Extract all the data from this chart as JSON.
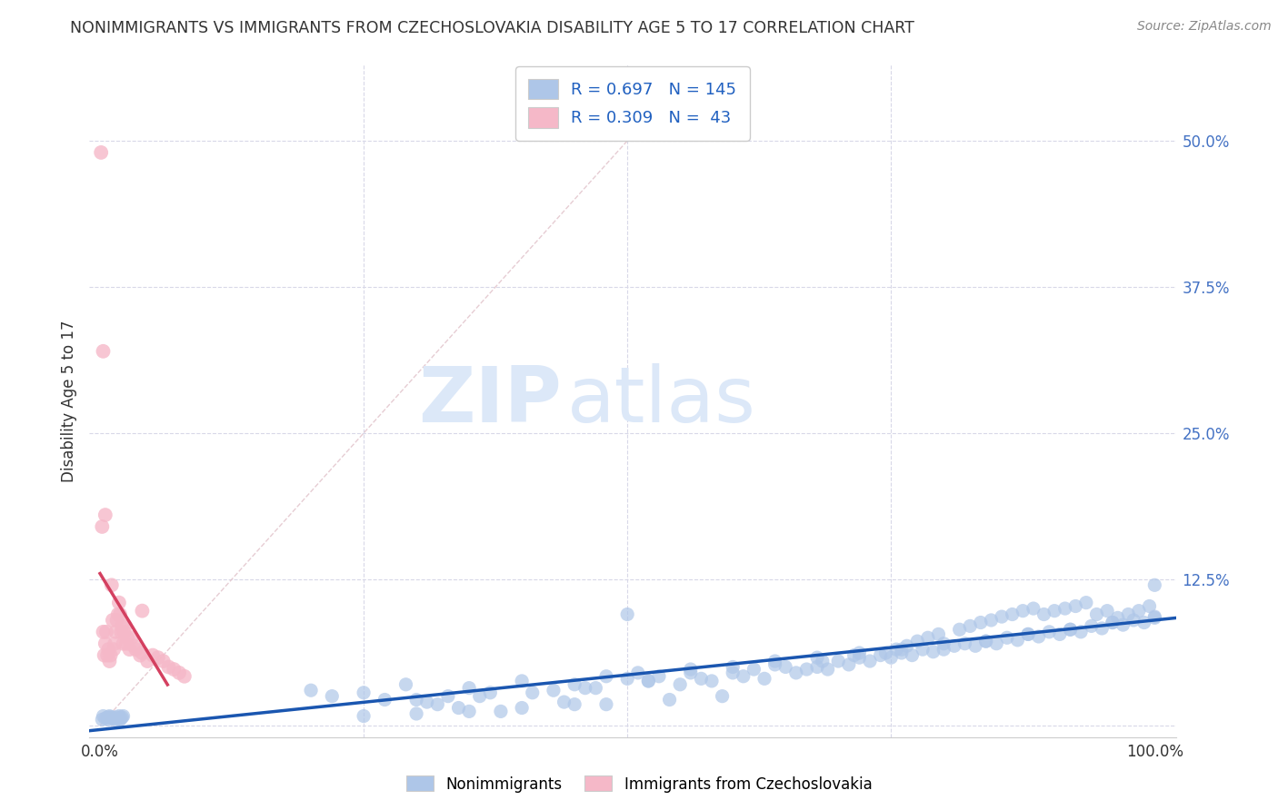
{
  "title": "NONIMMIGRANTS VS IMMIGRANTS FROM CZECHOSLOVAKIA DISABILITY AGE 5 TO 17 CORRELATION CHART",
  "source": "Source: ZipAtlas.com",
  "ylabel": "Disability Age 5 to 17",
  "xlim": [
    -0.01,
    1.02
  ],
  "ylim": [
    -0.01,
    0.565
  ],
  "xticks": [
    0.0,
    0.25,
    0.5,
    0.75,
    1.0
  ],
  "xticklabels": [
    "0.0%",
    "",
    "",
    "",
    "100.0%"
  ],
  "yticks": [
    0.0,
    0.125,
    0.25,
    0.375,
    0.5
  ],
  "yticklabels": [
    "",
    "12.5%",
    "25.0%",
    "37.5%",
    "50.0%"
  ],
  "blue_R": 0.697,
  "blue_N": 145,
  "pink_R": 0.309,
  "pink_N": 43,
  "blue_color": "#aec6e8",
  "pink_color": "#f5b8c8",
  "blue_line_color": "#1a56b0",
  "pink_line_color": "#d44060",
  "diag_color": "#e0c0c8",
  "background_color": "#ffffff",
  "grid_color": "#d8d8e8",
  "watermark_zip": "ZIP",
  "watermark_atlas": "atlas",
  "watermark_color": "#dce8f8",
  "legend_color": "#2060c0",
  "blue_scatter_x": [
    0.002,
    0.003,
    0.005,
    0.007,
    0.008,
    0.009,
    0.01,
    0.011,
    0.012,
    0.013,
    0.015,
    0.016,
    0.017,
    0.018,
    0.019,
    0.02,
    0.021,
    0.022,
    0.2,
    0.22,
    0.25,
    0.27,
    0.29,
    0.31,
    0.33,
    0.35,
    0.37,
    0.4,
    0.43,
    0.45,
    0.47,
    0.5,
    0.52,
    0.53,
    0.55,
    0.57,
    0.58,
    0.6,
    0.61,
    0.62,
    0.63,
    0.65,
    0.66,
    0.67,
    0.68,
    0.69,
    0.7,
    0.71,
    0.72,
    0.73,
    0.74,
    0.75,
    0.76,
    0.77,
    0.78,
    0.79,
    0.8,
    0.81,
    0.82,
    0.83,
    0.84,
    0.85,
    0.86,
    0.87,
    0.88,
    0.89,
    0.9,
    0.91,
    0.92,
    0.93,
    0.94,
    0.95,
    0.96,
    0.97,
    0.98,
    0.99,
    1.0,
    1.0,
    0.3,
    0.32,
    0.34,
    0.36,
    0.38,
    0.41,
    0.44,
    0.46,
    0.48,
    0.51,
    0.54,
    0.56,
    0.59,
    0.64,
    0.685,
    0.715,
    0.745,
    0.755,
    0.765,
    0.775,
    0.785,
    0.795,
    0.815,
    0.825,
    0.835,
    0.845,
    0.855,
    0.865,
    0.875,
    0.885,
    0.895,
    0.905,
    0.915,
    0.925,
    0.935,
    0.945,
    0.955,
    0.965,
    0.975,
    0.985,
    0.995,
    0.48,
    0.52,
    0.56,
    0.6,
    0.64,
    0.68,
    0.72,
    0.76,
    0.8,
    0.84,
    0.88,
    0.92,
    0.96,
    1.0,
    0.25,
    0.3,
    0.35,
    0.4,
    0.45,
    0.5
  ],
  "blue_scatter_y": [
    0.005,
    0.008,
    0.006,
    0.007,
    0.005,
    0.008,
    0.007,
    0.006,
    0.007,
    0.006,
    0.005,
    0.007,
    0.006,
    0.008,
    0.005,
    0.006,
    0.007,
    0.008,
    0.03,
    0.025,
    0.028,
    0.022,
    0.035,
    0.02,
    0.025,
    0.032,
    0.028,
    0.038,
    0.03,
    0.035,
    0.032,
    0.04,
    0.038,
    0.042,
    0.035,
    0.04,
    0.038,
    0.045,
    0.042,
    0.048,
    0.04,
    0.05,
    0.045,
    0.048,
    0.05,
    0.048,
    0.055,
    0.052,
    0.058,
    0.055,
    0.06,
    0.058,
    0.062,
    0.06,
    0.065,
    0.063,
    0.065,
    0.068,
    0.07,
    0.068,
    0.072,
    0.07,
    0.075,
    0.073,
    0.078,
    0.076,
    0.08,
    0.078,
    0.082,
    0.08,
    0.085,
    0.083,
    0.088,
    0.086,
    0.09,
    0.088,
    0.092,
    0.12,
    0.022,
    0.018,
    0.015,
    0.025,
    0.012,
    0.028,
    0.02,
    0.032,
    0.018,
    0.045,
    0.022,
    0.048,
    0.025,
    0.052,
    0.055,
    0.06,
    0.062,
    0.065,
    0.068,
    0.072,
    0.075,
    0.078,
    0.082,
    0.085,
    0.088,
    0.09,
    0.093,
    0.095,
    0.098,
    0.1,
    0.095,
    0.098,
    0.1,
    0.102,
    0.105,
    0.095,
    0.098,
    0.092,
    0.095,
    0.098,
    0.102,
    0.042,
    0.038,
    0.045,
    0.05,
    0.055,
    0.058,
    0.062,
    0.065,
    0.07,
    0.072,
    0.078,
    0.082,
    0.088,
    0.093,
    0.008,
    0.01,
    0.012,
    0.015,
    0.018,
    0.095
  ],
  "pink_scatter_x": [
    0.001,
    0.002,
    0.003,
    0.004,
    0.005,
    0.006,
    0.007,
    0.008,
    0.009,
    0.01,
    0.011,
    0.012,
    0.013,
    0.014,
    0.015,
    0.016,
    0.017,
    0.018,
    0.019,
    0.02,
    0.021,
    0.022,
    0.023,
    0.024,
    0.025,
    0.026,
    0.028,
    0.03,
    0.032,
    0.034,
    0.038,
    0.04,
    0.045,
    0.05,
    0.055,
    0.06,
    0.065,
    0.07,
    0.075,
    0.08,
    0.003,
    0.005,
    0.04
  ],
  "pink_scatter_y": [
    0.49,
    0.17,
    0.08,
    0.06,
    0.07,
    0.08,
    0.06,
    0.065,
    0.055,
    0.06,
    0.12,
    0.09,
    0.065,
    0.07,
    0.08,
    0.09,
    0.095,
    0.105,
    0.095,
    0.08,
    0.085,
    0.07,
    0.08,
    0.085,
    0.07,
    0.075,
    0.065,
    0.075,
    0.068,
    0.065,
    0.06,
    0.062,
    0.055,
    0.06,
    0.058,
    0.055,
    0.05,
    0.048,
    0.045,
    0.042,
    0.32,
    0.18,
    0.098
  ]
}
